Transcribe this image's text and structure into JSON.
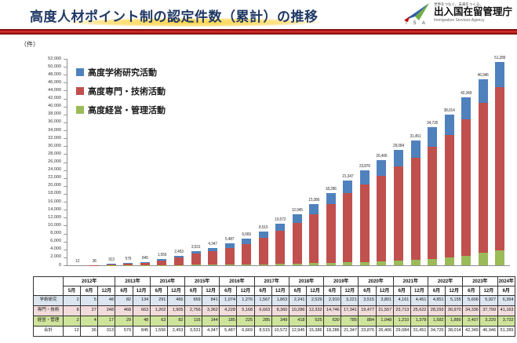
{
  "header": {
    "title": "高度人材ポイント制の認定件数（累計）の推移",
    "logo": {
      "tagline": "世界をつなぐ、未来をつくる。",
      "agency_ja": "出入国在留管理庁",
      "agency_en": "Immigration Services Agency",
      "initials": "I S A"
    }
  },
  "chart_data": {
    "type": "bar",
    "stacked": true,
    "title": "高度人材ポイント制の認定件数（累計）の推移",
    "unit_label": "（件）",
    "ylim": [
      0,
      52000
    ],
    "ytick_step": 2000,
    "grid": false,
    "legend_position": "top-left",
    "legend": [
      {
        "name": "高度学術研究活動",
        "color": "#4F81BD"
      },
      {
        "name": "高度専門・技術活動",
        "color": "#C0504D"
      },
      {
        "name": "高度経営・管理活動",
        "color": "#9BBB59"
      }
    ],
    "categories": [
      "2012年5月",
      "2012年6月",
      "2012年12月",
      "2013年6月",
      "2013年12月",
      "2014年6月",
      "2014年12月",
      "2015年6月",
      "2015年12月",
      "2016年6月",
      "2016年12月",
      "2017年6月",
      "2017年12月",
      "2018年6月",
      "2018年12月",
      "2019年6月",
      "2019年12月",
      "2020年6月",
      "2020年12月",
      "2021年6月",
      "2021年12月",
      "2022年6月",
      "2022年12月",
      "2023年6月",
      "2023年12月",
      "2024年6月"
    ],
    "stack_order_bottom_to_top": [
      "経営・管理",
      "専門・技術",
      "学術研究"
    ],
    "series": [
      {
        "name": "学術研究",
        "color": "#4F81BD",
        "values": [
          2,
          5,
          48,
          82,
          134,
          291,
          466,
          659,
          841,
          1074,
          1276,
          1567,
          1863,
          2241,
          2529,
          2910,
          3221,
          3515,
          3801,
          4161,
          4451,
          4851,
          5155,
          5606,
          5927,
          6394
        ]
      },
      {
        "name": "専門・技術",
        "color": "#C0504D",
        "values": [
          8,
          27,
          248,
          468,
          663,
          1202,
          1905,
          2756,
          3362,
          4228,
          5168,
          6663,
          8360,
          10286,
          12332,
          14746,
          17341,
          19477,
          21557,
          23713,
          25622,
          28293,
          30970,
          34336,
          37799,
          41163
        ]
      },
      {
        "name": "経営・管理",
        "color": "#9BBB59",
        "values": [
          2,
          4,
          17,
          29,
          48,
          63,
          82,
          116,
          144,
          185,
          225,
          285,
          349,
          418,
          525,
          630,
          785,
          884,
          1048,
          1210,
          1378,
          1582,
          1889,
          2407,
          3220,
          3732
        ]
      }
    ],
    "totals": [
      12,
      36,
      313,
      579,
      845,
      1556,
      2453,
      3531,
      4347,
      5487,
      6669,
      8515,
      10572,
      12945,
      15386,
      18286,
      21347,
      23876,
      26406,
      29084,
      31451,
      34726,
      38014,
      42349,
      46946,
      51289
    ]
  },
  "table": {
    "corner_label": "",
    "year_groups": [
      {
        "label": "2012年",
        "months": [
          "5月",
          "6月",
          "12月"
        ]
      },
      {
        "label": "2013年",
        "months": [
          "6月",
          "12月"
        ]
      },
      {
        "label": "2014年",
        "months": [
          "6月",
          "12月"
        ]
      },
      {
        "label": "2015年",
        "months": [
          "6月",
          "12月"
        ]
      },
      {
        "label": "2016年",
        "months": [
          "6月",
          "12月"
        ]
      },
      {
        "label": "2017年",
        "months": [
          "6月",
          "12月"
        ]
      },
      {
        "label": "2018年",
        "months": [
          "6月",
          "12月"
        ]
      },
      {
        "label": "2019年",
        "months": [
          "6月",
          "12月"
        ]
      },
      {
        "label": "2020年",
        "months": [
          "6月",
          "12月"
        ]
      },
      {
        "label": "2021年",
        "months": [
          "6月",
          "12月"
        ]
      },
      {
        "label": "2022年",
        "months": [
          "6月",
          "12月"
        ]
      },
      {
        "label": "2023年",
        "months": [
          "6月",
          "12月"
        ]
      },
      {
        "label": "2024年",
        "months": [
          "6月"
        ]
      }
    ],
    "rows": [
      {
        "label": "学術研究",
        "bg": "#DCE6F1"
      },
      {
        "label": "専門・技術",
        "bg": "#F2DCDB"
      },
      {
        "label": "経営・管理",
        "bg": "#CFE49B"
      },
      {
        "label": "合計",
        "bg": "#FFFFFF"
      }
    ]
  }
}
